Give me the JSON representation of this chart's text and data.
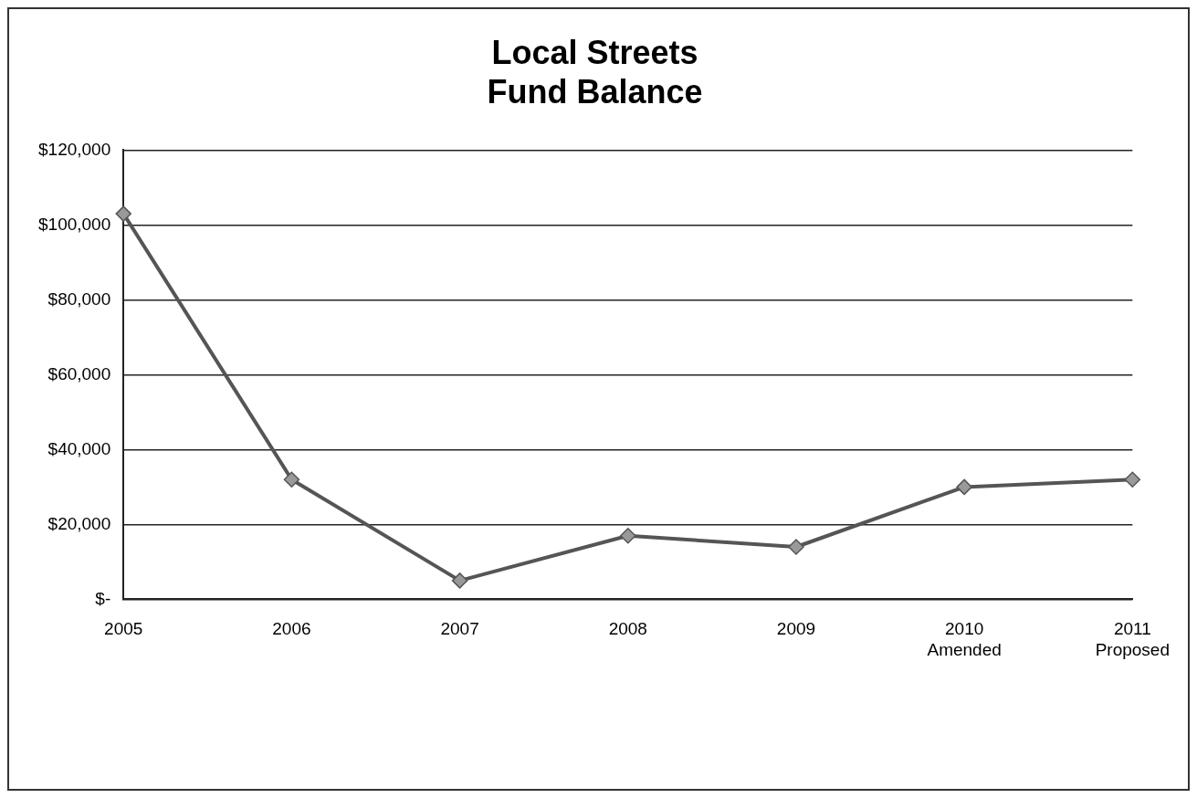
{
  "chart_data": {
    "type": "line",
    "title": [
      "Local Streets",
      "Fund Balance"
    ],
    "categories": [
      "2005",
      "2006",
      "2007",
      "2008",
      "2009",
      [
        "2010",
        "Amended"
      ],
      [
        "2011",
        "Proposed"
      ]
    ],
    "series": [
      {
        "color": "#555555",
        "values": [
          103000,
          32000,
          5000,
          17000,
          14000,
          30000,
          32000
        ]
      }
    ],
    "ylim": [
      0,
      120000
    ],
    "yticks": [
      {
        "value": 0,
        "label": "$-"
      },
      {
        "value": 20000,
        "label": "$20,000"
      },
      {
        "value": 40000,
        "label": "$40,000"
      },
      {
        "value": 60000,
        "label": "$60,000"
      },
      {
        "value": 80000,
        "label": "$80,000"
      },
      {
        "value": 100000,
        "label": "$100,000"
      },
      {
        "value": 120000,
        "label": "$120,000"
      }
    ],
    "grid": "y",
    "legend": false,
    "marker": "diamond",
    "line_style": "solid"
  }
}
